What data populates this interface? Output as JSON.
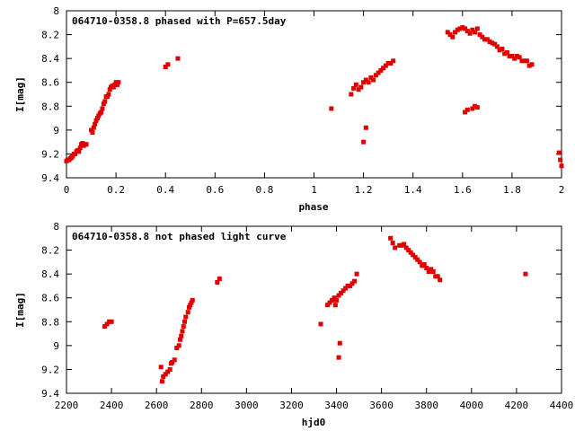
{
  "chart_data": [
    {
      "type": "scatter",
      "title": "064710-0358.8 phased with P=657.5day",
      "xlabel": "phase",
      "ylabel": "I[mag]",
      "xlim": [
        0,
        2
      ],
      "ylim": [
        9.4,
        8
      ],
      "y_inverted": true,
      "xticks": [
        "0",
        "0.2",
        "0.4",
        "0.6",
        "0.8",
        "1",
        "1.2",
        "1.4",
        "1.6",
        "1.8",
        "2"
      ],
      "yticks": [
        "8",
        "8.2",
        "8.4",
        "8.6",
        "8.8",
        "9",
        "9.2",
        "9.4"
      ],
      "grid": false,
      "color": "#e00000",
      "series": [
        {
          "x": [
            0.0,
            0.005,
            0.01,
            0.015,
            0.02,
            0.025,
            0.03,
            0.035,
            0.04,
            0.045,
            0.05,
            0.055,
            0.06,
            0.065,
            0.07,
            0.075,
            0.08,
            0.1,
            0.105,
            0.11,
            0.115,
            0.12,
            0.125,
            0.13,
            0.135,
            0.14,
            0.145,
            0.15,
            0.155,
            0.16,
            0.165,
            0.17,
            0.175,
            0.18,
            0.185,
            0.19,
            0.195,
            0.2,
            0.205,
            0.21,
            0.4,
            0.41,
            0.45,
            1.07,
            1.15,
            1.16,
            1.17,
            1.18,
            1.19,
            1.2,
            1.21,
            1.22,
            1.23,
            1.24,
            1.25,
            1.26,
            1.27,
            1.28,
            1.29,
            1.3,
            1.31,
            1.32,
            1.2,
            1.21,
            1.54,
            1.55,
            1.56,
            1.57,
            1.58,
            1.59,
            1.6,
            1.61,
            1.62,
            1.63,
            1.64,
            1.65,
            1.66,
            1.67,
            1.68,
            1.69,
            1.7,
            1.71,
            1.72,
            1.73,
            1.74,
            1.75,
            1.76,
            1.77,
            1.78,
            1.79,
            1.8,
            1.81,
            1.82,
            1.83,
            1.84,
            1.85,
            1.86,
            1.87,
            1.88,
            1.61,
            1.62,
            1.64,
            1.65,
            1.66,
            1.99,
            2.0,
            1.995
          ],
          "y": [
            9.26,
            9.25,
            9.25,
            9.24,
            9.23,
            9.22,
            9.2,
            9.2,
            9.18,
            9.17,
            9.18,
            9.15,
            9.12,
            9.11,
            9.13,
            9.12,
            9.12,
            9.0,
            9.02,
            8.98,
            8.95,
            8.92,
            8.9,
            8.88,
            8.86,
            8.85,
            8.82,
            8.78,
            8.76,
            8.72,
            8.72,
            8.7,
            8.66,
            8.64,
            8.63,
            8.64,
            8.62,
            8.6,
            8.62,
            8.6,
            8.47,
            8.45,
            8.4,
            8.82,
            8.7,
            8.65,
            8.62,
            8.66,
            8.64,
            8.6,
            8.58,
            8.6,
            8.56,
            8.58,
            8.54,
            8.52,
            8.5,
            8.48,
            8.46,
            8.44,
            8.44,
            8.42,
            9.1,
            8.98,
            8.18,
            8.2,
            8.22,
            8.18,
            8.16,
            8.15,
            8.14,
            8.15,
            8.17,
            8.19,
            8.16,
            8.18,
            8.15,
            8.2,
            8.22,
            8.24,
            8.24,
            8.26,
            8.27,
            8.28,
            8.3,
            8.33,
            8.32,
            8.36,
            8.35,
            8.38,
            8.38,
            8.4,
            8.38,
            8.39,
            8.42,
            8.42,
            8.42,
            8.46,
            8.45,
            8.85,
            8.83,
            8.82,
            8.8,
            8.81,
            9.19,
            9.3,
            9.25
          ]
        }
      ]
    },
    {
      "type": "scatter",
      "title": "064710-0358.8 not phased light curve",
      "xlabel": "hjd0",
      "ylabel": "I[mag]",
      "xlim": [
        2200,
        4400
      ],
      "ylim": [
        9.4,
        8
      ],
      "y_inverted": true,
      "xticks": [
        "2200",
        "2400",
        "2600",
        "2800",
        "3000",
        "3200",
        "3400",
        "3600",
        "3800",
        "4000",
        "4200",
        "4400"
      ],
      "yticks": [
        "8",
        "8.2",
        "8.4",
        "8.6",
        "8.8",
        "9",
        "9.2",
        "9.4"
      ],
      "grid": false,
      "color": "#e00000",
      "series": [
        {
          "x": [
            2370,
            2380,
            2390,
            2400,
            2620,
            2625,
            2630,
            2640,
            2650,
            2660,
            2665,
            2670,
            2680,
            2690,
            2700,
            2705,
            2710,
            2715,
            2720,
            2725,
            2730,
            2740,
            2745,
            2750,
            2755,
            2760,
            2870,
            2880,
            3330,
            3360,
            3370,
            3380,
            3390,
            3395,
            3400,
            3410,
            3420,
            3430,
            3440,
            3450,
            3460,
            3470,
            3480,
            3490,
            3410,
            3415,
            3640,
            3650,
            3660,
            3680,
            3690,
            3700,
            3710,
            3720,
            3730,
            3740,
            3750,
            3760,
            3770,
            3780,
            3790,
            3800,
            3810,
            3820,
            3830,
            3840,
            3850,
            3860,
            4240
          ],
          "y": [
            8.84,
            8.82,
            8.8,
            8.8,
            9.18,
            9.3,
            9.26,
            9.24,
            9.22,
            9.2,
            9.15,
            9.14,
            9.12,
            9.02,
            9.0,
            8.95,
            8.92,
            8.88,
            8.84,
            8.8,
            8.76,
            8.72,
            8.68,
            8.66,
            8.64,
            8.62,
            8.47,
            8.44,
            8.82,
            8.66,
            8.64,
            8.62,
            8.6,
            8.66,
            8.62,
            8.58,
            8.56,
            8.54,
            8.52,
            8.5,
            8.5,
            8.48,
            8.46,
            8.4,
            9.1,
            8.98,
            8.1,
            8.14,
            8.18,
            8.16,
            8.16,
            8.15,
            8.18,
            8.2,
            8.22,
            8.24,
            8.26,
            8.28,
            8.3,
            8.33,
            8.32,
            8.35,
            8.38,
            8.36,
            8.38,
            8.42,
            8.42,
            8.45,
            8.4
          ]
        }
      ]
    }
  ]
}
